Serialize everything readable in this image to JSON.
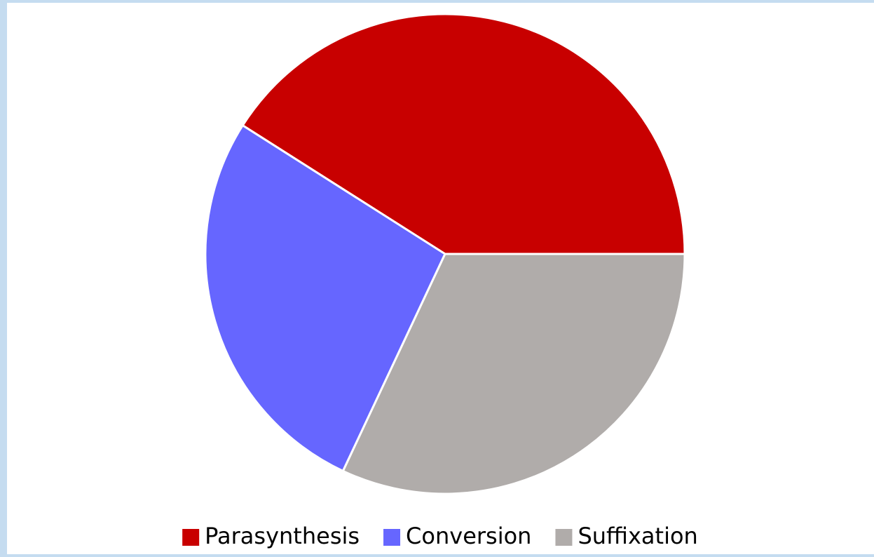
{
  "chart_data": {
    "type": "pie",
    "categories": [
      "Parasynthesis",
      "Conversion",
      "Suffixation"
    ],
    "values": [
      41,
      27,
      32
    ],
    "colors": [
      "#c80000",
      "#6666ff",
      "#b0acaa"
    ],
    "legend": "bottom"
  }
}
